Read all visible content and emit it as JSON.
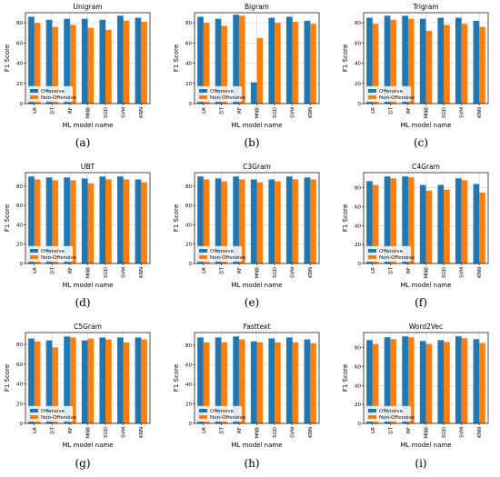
{
  "colors": {
    "offensive": "#1f77b4",
    "non_offensive": "#ff7f0e"
  },
  "legend": [
    "Offensive",
    "Non-Offensive"
  ],
  "captions": [
    "(a)",
    "(b)",
    "(c)",
    "(d)",
    "(e)",
    "(f)",
    "(g)",
    "(h)",
    "(i)"
  ],
  "chart_data": [
    {
      "type": "bar",
      "title": "Unigram",
      "xlabel": "ML model name",
      "ylabel": "F1 Score",
      "categories": [
        "LR",
        "DT",
        "RF",
        "MNB",
        "SGD",
        "SVM",
        "KNN"
      ],
      "ylim": [
        0,
        90
      ],
      "yticks": [
        0,
        20,
        40,
        60,
        80
      ],
      "series": [
        {
          "name": "Offensive",
          "values": [
            86,
            83,
            84,
            84,
            83,
            87,
            85
          ]
        },
        {
          "name": "Non-Offensive",
          "values": [
            80,
            76,
            78,
            75,
            73,
            82,
            81
          ]
        }
      ]
    },
    {
      "type": "bar",
      "title": "Bigram",
      "xlabel": "ML model name",
      "ylabel": "F1 Score",
      "categories": [
        "LR",
        "DT",
        "RF",
        "MNB",
        "SGD",
        "SVM",
        "KNN"
      ],
      "ylim": [
        0,
        90
      ],
      "yticks": [
        0,
        20,
        40,
        60,
        80
      ],
      "series": [
        {
          "name": "Offensive",
          "values": [
            86,
            84,
            88,
            21,
            85,
            86,
            82
          ]
        },
        {
          "name": "Non-Offensive",
          "values": [
            80,
            77,
            87,
            65,
            80,
            81,
            79
          ]
        }
      ]
    },
    {
      "type": "bar",
      "title": "Trigram",
      "xlabel": "ML model name",
      "ylabel": "F1 Score",
      "categories": [
        "LR",
        "DT",
        "RF",
        "MNB",
        "SGD",
        "SVM",
        "KNN"
      ],
      "ylim": [
        0,
        90
      ],
      "yticks": [
        0,
        20,
        40,
        60,
        80
      ],
      "series": [
        {
          "name": "Offensive",
          "values": [
            85,
            87,
            87,
            84,
            85,
            85,
            82
          ]
        },
        {
          "name": "Non-Offensive",
          "values": [
            79,
            83,
            84,
            72,
            78,
            79,
            76
          ]
        }
      ]
    },
    {
      "type": "bar",
      "title": "UBT",
      "xlabel": "ML model name",
      "ylabel": "F1 Score",
      "categories": [
        "LR",
        "DT",
        "RF",
        "MNB",
        "SGD",
        "SVM",
        "KNN"
      ],
      "ylim": [
        0,
        94
      ],
      "yticks": [
        0,
        20,
        40,
        60,
        80
      ],
      "series": [
        {
          "name": "Offensive",
          "values": [
            90,
            89,
            89,
            88,
            90,
            90,
            87
          ]
        },
        {
          "name": "Non-Offensive",
          "values": [
            87,
            86,
            86,
            83,
            87,
            87,
            84
          ]
        }
      ]
    },
    {
      "type": "bar",
      "title": "C3Gram",
      "xlabel": "ML model name",
      "ylabel": "F1 Score",
      "categories": [
        "LR",
        "DT",
        "RF",
        "MNB",
        "SGD",
        "SVM",
        "KNN"
      ],
      "ylim": [
        0,
        94
      ],
      "yticks": [
        0,
        20,
        40,
        60,
        80
      ],
      "series": [
        {
          "name": "Offensive",
          "values": [
            90,
            88,
            90,
            87,
            87,
            90,
            89
          ]
        },
        {
          "name": "Non-Offensive",
          "values": [
            87,
            85,
            87,
            84,
            85,
            87,
            87
          ]
        }
      ]
    },
    {
      "type": "bar",
      "title": "C4Gram",
      "xlabel": "ML model name",
      "ylabel": "F1 Score",
      "categories": [
        "LR",
        "DT",
        "RF",
        "MNB",
        "SGD",
        "SVM",
        "KNN"
      ],
      "ylim": [
        0,
        96
      ],
      "yticks": [
        0,
        20,
        40,
        60,
        80
      ],
      "series": [
        {
          "name": "Offensive",
          "values": [
            87,
            92,
            92,
            83,
            83,
            90,
            84
          ]
        },
        {
          "name": "Non-Offensive",
          "values": [
            83,
            90,
            91,
            77,
            78,
            88,
            75
          ]
        }
      ]
    },
    {
      "type": "bar",
      "title": "C5Gram",
      "xlabel": "ML model name",
      "ylabel": "F1 Score",
      "categories": [
        "LR",
        "DT",
        "RF",
        "MNB",
        "SGD",
        "SVM",
        "KNN"
      ],
      "ylim": [
        0,
        92
      ],
      "yticks": [
        0,
        20,
        40,
        60,
        80
      ],
      "series": [
        {
          "name": "Offensive",
          "values": [
            86,
            84,
            88,
            84,
            87,
            87,
            87
          ]
        },
        {
          "name": "Non-Offensive",
          "values": [
            83,
            77,
            87,
            86,
            85,
            82,
            85
          ]
        }
      ]
    },
    {
      "type": "bar",
      "title": "Fasttext",
      "xlabel": "ML model name",
      "ylabel": "F1 Score",
      "categories": [
        "LR",
        "DT",
        "RF",
        "MNB",
        "SGD",
        "SVM",
        "KNN"
      ],
      "ylim": [
        0,
        93
      ],
      "yticks": [
        0,
        20,
        40,
        60,
        80
      ],
      "series": [
        {
          "name": "Offensive",
          "values": [
            88,
            88,
            89,
            84,
            87,
            88,
            86
          ]
        },
        {
          "name": "Non-Offensive",
          "values": [
            83,
            83,
            86,
            83,
            83,
            83,
            82
          ]
        }
      ]
    },
    {
      "type": "bar",
      "title": "Word2Vec",
      "xlabel": "ML model name",
      "ylabel": "F1 Score",
      "categories": [
        "LR",
        "DT",
        "RF",
        "MNB",
        "SGD",
        "SVM",
        "KNN"
      ],
      "ylim": [
        0,
        96
      ],
      "yticks": [
        0,
        20,
        40,
        60,
        80
      ],
      "series": [
        {
          "name": "Offensive",
          "values": [
            88,
            91,
            92,
            87,
            88,
            92,
            89
          ]
        },
        {
          "name": "Non-Offensive",
          "values": [
            84,
            89,
            91,
            84,
            86,
            90,
            85
          ]
        }
      ]
    }
  ]
}
